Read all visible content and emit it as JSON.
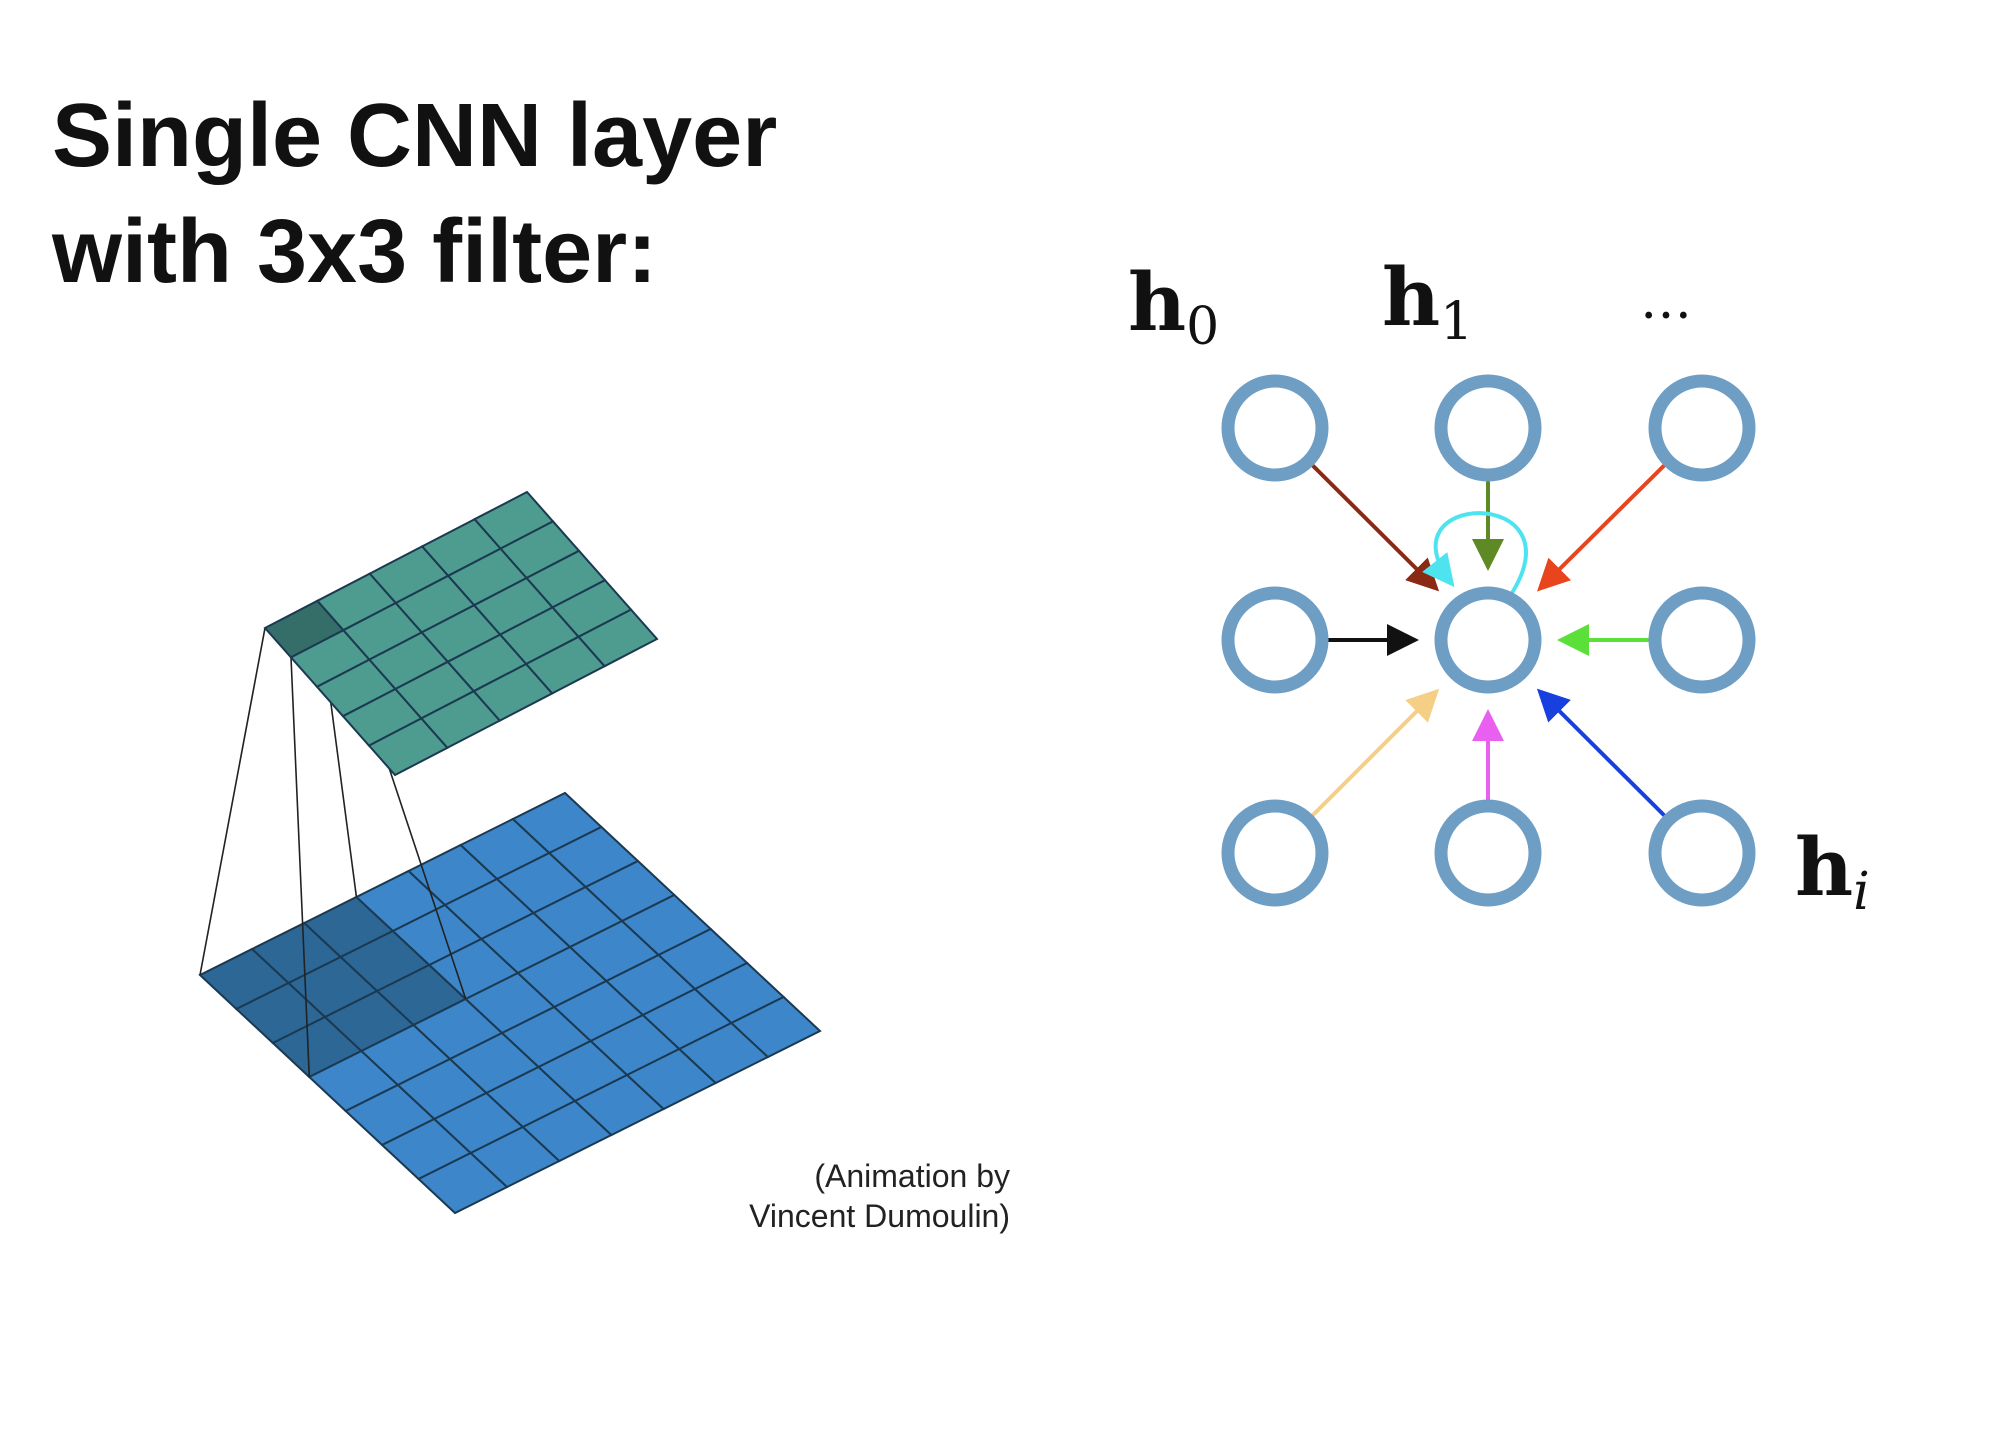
{
  "title": {
    "line1": "Single CNN layer",
    "line2": "with 3x3 filter:"
  },
  "credit": {
    "line1": "(Animation by",
    "line2": "Vincent Dumoulin)"
  },
  "convolution": {
    "input_grid": {
      "rows": 7,
      "cols": 7
    },
    "output_grid": {
      "rows": 5,
      "cols": 5
    },
    "filter_size": 3,
    "colors": {
      "input_cell": "#3d86ca",
      "input_highlight": "#2c6796",
      "output_cell": "#4e9b8f",
      "output_highlight": "#356e68",
      "grid_line": "#1b3a52"
    }
  },
  "graph": {
    "labels": {
      "h0": {
        "base": "h",
        "sub": "0"
      },
      "h1": {
        "base": "h",
        "sub": "1"
      },
      "ellipsis": "…",
      "hi": {
        "base": "h",
        "sub": "i"
      }
    },
    "node_color": "#6f9ec5",
    "edges": [
      {
        "from": "top-left",
        "color": "#8b2a14"
      },
      {
        "from": "top-middle",
        "color": "#5e8a25"
      },
      {
        "from": "top-right",
        "color": "#e8451f"
      },
      {
        "from": "middle-left",
        "color": "#111111"
      },
      {
        "from": "middle-right",
        "color": "#5be03a"
      },
      {
        "from": "bottom-left",
        "color": "#f5cf86"
      },
      {
        "from": "bottom-middle",
        "color": "#e95ff0"
      },
      {
        "from": "bottom-right",
        "color": "#1840e0"
      },
      {
        "from": "self",
        "color": "#4de3ef"
      }
    ]
  }
}
